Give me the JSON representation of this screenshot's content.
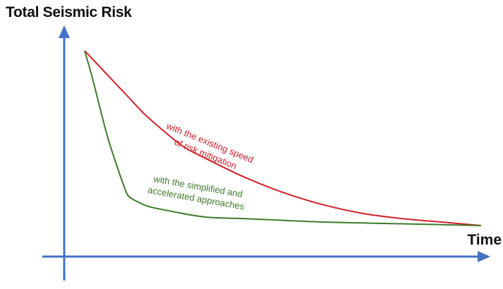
{
  "chart_data": {
    "type": "line",
    "title": "",
    "ylabel": "Total Seismic Risk",
    "xlabel": "Time",
    "xlim": [
      0,
      100
    ],
    "ylim": [
      0,
      100
    ],
    "grid": false,
    "legend": "none",
    "series": [
      {
        "color": "#d0202a",
        "x": [
          0,
          5,
          10,
          15,
          20,
          25,
          30,
          40,
          50,
          60,
          70,
          80,
          90,
          100
        ],
        "y": [
          100,
          88,
          76,
          64,
          54,
          45,
          39,
          28,
          19,
          12,
          7,
          4,
          2,
          0
        ]
      },
      {
        "color": "#3e7a2a",
        "x": [
          0,
          2,
          4,
          6,
          8,
          10,
          11,
          13,
          16,
          20,
          30,
          40,
          50,
          60,
          80,
          100
        ],
        "y": [
          100,
          84,
          66,
          49,
          35,
          22,
          17,
          14,
          11,
          9,
          5,
          4,
          3,
          2,
          1,
          0
        ]
      }
    ],
    "annotations": [
      {
        "lines": [
          "with the existing speed",
          "of risk mitigation"
        ],
        "color": "#d0202a"
      },
      {
        "lines": [
          "with the  simplified and",
          "accelerated approaches"
        ],
        "color": "#3e7a2a"
      }
    ],
    "axis_color": "#4472c4"
  }
}
